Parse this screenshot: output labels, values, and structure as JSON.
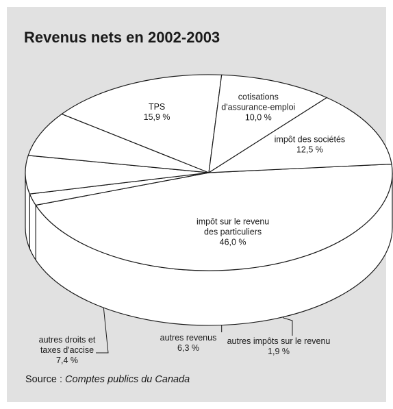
{
  "title": "Revenus nets en 2002-2003",
  "source": {
    "prefix": "Source : ",
    "name": "Comptes publics du Canada"
  },
  "colors": {
    "background": "#e1e1e1",
    "slice_fill": "#ffffff",
    "stroke": "#1a1a1a"
  },
  "chart_data": {
    "type": "pie",
    "style": "3d",
    "unit": "%",
    "slices": [
      {
        "label": [
          "impôt sur le revenu",
          "des particuliers"
        ],
        "value": 46.0,
        "value_text": "46,0 %",
        "position": "inside"
      },
      {
        "label": [
          "autres impôts sur le revenu"
        ],
        "value": 1.9,
        "value_text": "1,9 %",
        "position": "outside"
      },
      {
        "label": [
          "autres revenus"
        ],
        "value": 6.3,
        "value_text": "6,3 %",
        "position": "outside"
      },
      {
        "label": [
          "autres droits et",
          "taxes d'accise"
        ],
        "value": 7.4,
        "value_text": "7,4 %",
        "position": "outside"
      },
      {
        "label": [
          "TPS"
        ],
        "value": 15.9,
        "value_text": "15,9 %",
        "position": "inside"
      },
      {
        "label": [
          "cotisations",
          "d'assurance-emploi"
        ],
        "value": 10.0,
        "value_text": "10,0 %",
        "position": "inside"
      },
      {
        "label": [
          "impôt des sociétés"
        ],
        "value": 12.5,
        "value_text": "12,5 %",
        "position": "inside"
      }
    ]
  }
}
